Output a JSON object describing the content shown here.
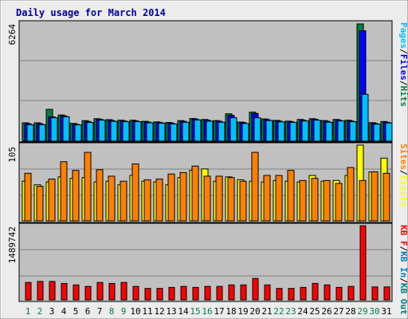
{
  "title": "Daily usage for March 2014",
  "colors": {
    "background": "#ECECEC",
    "plot_bg": "#C0C0C0",
    "title": "#0000A0",
    "hits": "#008040",
    "files": "#0000FF",
    "pages": "#00C0FF",
    "visits": "#FFFF00",
    "sites": "#FF8000",
    "kb_in": "#0080C0",
    "kb_out": "#008080",
    "kb_f": "#FF0000",
    "weekend_label": "#008040",
    "weekday_label": "#000000"
  },
  "chart_data": [
    {
      "type": "bar",
      "panel": "hits-files-pages",
      "ymax_label": "6264",
      "ylim": [
        0,
        6264
      ],
      "legend": [
        "Pages",
        "Files",
        "Hits"
      ],
      "categories": [
        "1",
        "2",
        "3",
        "4",
        "5",
        "6",
        "7",
        "8",
        "9",
        "10",
        "11",
        "12",
        "13",
        "14",
        "15",
        "16",
        "17",
        "18",
        "19",
        "20",
        "21",
        "22",
        "23",
        "24",
        "25",
        "26",
        "27",
        "28",
        "29",
        "30",
        "31"
      ],
      "series": [
        {
          "name": "Hits",
          "values": [
            980,
            980,
            1700,
            1400,
            950,
            1100,
            1200,
            1150,
            1120,
            1120,
            1060,
            1030,
            1000,
            1100,
            1210,
            1160,
            1100,
            1460,
            1020,
            1550,
            1190,
            1110,
            1070,
            1160,
            1200,
            1100,
            1160,
            1120,
            6264,
            990,
            1050
          ]
        },
        {
          "name": "Files",
          "values": [
            930,
            930,
            1300,
            1350,
            900,
            1050,
            1170,
            1100,
            1080,
            1080,
            1020,
            1000,
            960,
            1060,
            1180,
            1120,
            1060,
            1380,
            990,
            1480,
            1150,
            1070,
            1040,
            1120,
            1170,
            1060,
            1120,
            1080,
            5900,
            950,
            1010
          ]
        },
        {
          "name": "Pages",
          "values": [
            880,
            880,
            1250,
            1300,
            870,
            1000,
            1120,
            1060,
            1040,
            1040,
            980,
            960,
            920,
            1010,
            1130,
            1070,
            1010,
            1250,
            940,
            1250,
            1100,
            1030,
            1000,
            1080,
            1120,
            1010,
            1080,
            1040,
            2500,
            910,
            970
          ]
        }
      ]
    },
    {
      "type": "bar",
      "panel": "visits-sites",
      "ymax_label": "105",
      "ylim": [
        0,
        105
      ],
      "legend": [
        "Sites",
        "Visits"
      ],
      "categories": [
        "1",
        "2",
        "3",
        "4",
        "5",
        "6",
        "7",
        "8",
        "9",
        "10",
        "11",
        "12",
        "13",
        "14",
        "15",
        "16",
        "17",
        "18",
        "19",
        "20",
        "21",
        "22",
        "23",
        "24",
        "25",
        "26",
        "27",
        "28",
        "29",
        "30",
        "31"
      ],
      "series": [
        {
          "name": "Visits",
          "values": [
            55,
            50,
            54,
            61,
            59,
            60,
            54,
            55,
            50,
            63,
            55,
            54,
            50,
            60,
            70,
            72,
            55,
            61,
            57,
            55,
            54,
            56,
            55,
            54,
            63,
            55,
            56,
            63,
            105,
            68,
            87
          ]
        },
        {
          "name": "Sites",
          "values": [
            66,
            48,
            58,
            82,
            70,
            95,
            71,
            62,
            55,
            79,
            57,
            58,
            65,
            67,
            76,
            62,
            62,
            60,
            55,
            95,
            63,
            63,
            70,
            56,
            59,
            56,
            52,
            74,
            56,
            68,
            66
          ]
        }
      ]
    },
    {
      "type": "bar",
      "panel": "kbytes",
      "ymax_label": "1489742",
      "ylim": [
        0,
        1489742
      ],
      "legend": [
        "KB F",
        "KB In",
        "KB Out"
      ],
      "categories": [
        "1",
        "2",
        "3",
        "4",
        "5",
        "6",
        "7",
        "8",
        "9",
        "10",
        "11",
        "12",
        "13",
        "14",
        "15",
        "16",
        "17",
        "18",
        "19",
        "20",
        "21",
        "22",
        "23",
        "24",
        "25",
        "26",
        "27",
        "28",
        "29",
        "30",
        "31"
      ],
      "series": [
        {
          "name": "KB F",
          "values": [
            350000,
            370000,
            370000,
            330000,
            300000,
            270000,
            350000,
            330000,
            350000,
            270000,
            230000,
            230000,
            250000,
            270000,
            250000,
            270000,
            270000,
            300000,
            300000,
            430000,
            300000,
            230000,
            230000,
            250000,
            330000,
            300000,
            250000,
            270000,
            1489742,
            260000,
            260000
          ]
        }
      ]
    }
  ]
}
